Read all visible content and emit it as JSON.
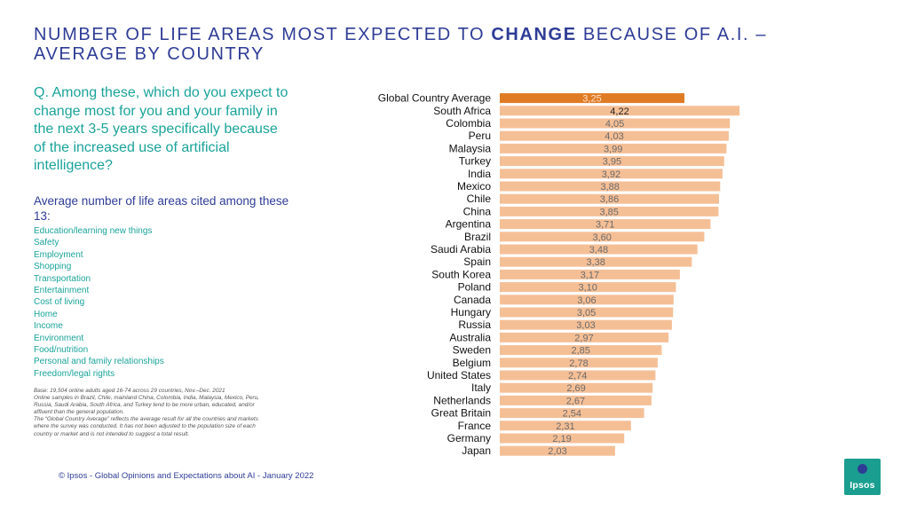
{
  "title": {
    "part1": "NUMBER OF LIFE AREAS MOST EXPECTED TO",
    "emph": "CHANGE",
    "part2": "BECAUSE OF A.I. – AVERAGE BY COUNTRY"
  },
  "question": "Q. Among these, which do you expect to change most for you and your family in the next 3-5 years specifically because of the increased use of artificial intelligence?",
  "subheading": "Average number of life areas cited among these 13:",
  "life_areas": [
    "Education/learning new things",
    "Safety",
    "Employment",
    "Shopping",
    "Transportation",
    "Entertainment",
    "Cost of living",
    "Home",
    "Income",
    "Environment",
    "Food/nutrition",
    "Personal and family relationships",
    "Freedom/legal rights"
  ],
  "note": {
    "line1": "Base: 19,504 online adults aged 16-74 across 29 countries, Nov.–Dec. 2021",
    "line2": "Online samples in Brazil, Chile, mainland China, Colombia, India, Malaysia, Mexico, Peru, Russia, Saudi Arabia, South Africa, and Turkey tend to be more urban, educated, and/or affluent than the general population.",
    "line3": "The “Global Country Average” reflects the average result for all the countries and markets where the survey was conducted. It has not been adjusted to the population size of each country or market and is not intended to suggest a total result."
  },
  "footer": "© Ipsos - Global Opinions and Expectations about AI - January 2022",
  "logo_text": "Ipsos",
  "colors": {
    "title": "#2e3c96",
    "teal": "#1aa39a",
    "bar": "#f5bf96",
    "highlight_bar": "#e07b25",
    "logo_bg": "#1a9e8f"
  },
  "chart_data": {
    "type": "bar",
    "orientation": "horizontal",
    "highlight": "Global Country Average",
    "categories": [
      "Global Country Average",
      "South Africa",
      "Colombia",
      "Peru",
      "Malaysia",
      "Turkey",
      "India",
      "Mexico",
      "Chile",
      "China",
      "Argentina",
      "Brazil",
      "Saudi Arabia",
      "Spain",
      "South Korea",
      "Poland",
      "Canada",
      "Hungary",
      "Russia",
      "Australia",
      "Sweden",
      "Belgium",
      "United States",
      "Italy",
      "Netherlands",
      "Great Britain",
      "France",
      "Germany",
      "Japan"
    ],
    "values": [
      3.25,
      4.22,
      4.05,
      4.03,
      3.99,
      3.95,
      3.92,
      3.88,
      3.86,
      3.85,
      3.71,
      3.6,
      3.48,
      3.38,
      3.17,
      3.1,
      3.06,
      3.05,
      3.03,
      2.97,
      2.85,
      2.78,
      2.74,
      2.69,
      2.67,
      2.54,
      2.31,
      2.19,
      2.03
    ],
    "labels": [
      "3,25",
      "4,22",
      "4,05",
      "4,03",
      "3,99",
      "3,95",
      "3,92",
      "3,88",
      "3,86",
      "3,85",
      "3,71",
      "3,60",
      "3,48",
      "3,38",
      "3,17",
      "3,10",
      "3,06",
      "3,05",
      "3,03",
      "2,97",
      "2,85",
      "2,78",
      "2,74",
      "2,69",
      "2,67",
      "2,54",
      "2,31",
      "2,19",
      "2,03"
    ],
    "xlim": [
      0,
      4.22
    ],
    "grid": false,
    "legend": "none"
  }
}
